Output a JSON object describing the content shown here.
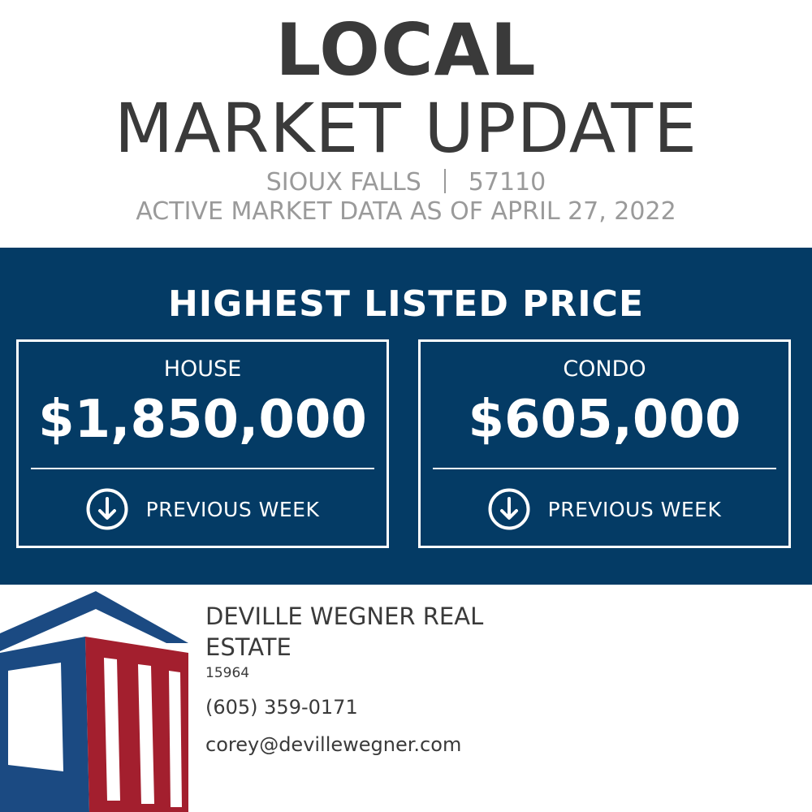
{
  "header": {
    "title_bold": "LOCAL",
    "title_light": "MARKET UPDATE",
    "city": "SIOUX FALLS",
    "zip": "57110",
    "date_line": "ACTIVE MARKET DATA AS OF APRIL 27, 2022"
  },
  "band": {
    "title": "HIGHEST LISTED PRICE",
    "cards": [
      {
        "label": "HOUSE",
        "value": "$1,850,000",
        "trend_icon": "arrow-down-circle-icon",
        "trend_label": "PREVIOUS WEEK"
      },
      {
        "label": "CONDO",
        "value": "$605,000",
        "trend_icon": "arrow-down-circle-icon",
        "trend_label": "PREVIOUS WEEK"
      }
    ]
  },
  "agent": {
    "name": "DEVILLE WEGNER REAL ESTATE",
    "license": "15964",
    "phone": "(605) 359-0171",
    "email": "corey@devillewegner.com"
  },
  "colors": {
    "band_background": "#043b65",
    "title_text": "#3a3a3a",
    "subtitle_text": "#9a9a9a",
    "logo_blue": "#1b4a82",
    "logo_red": "#a31f2e"
  }
}
